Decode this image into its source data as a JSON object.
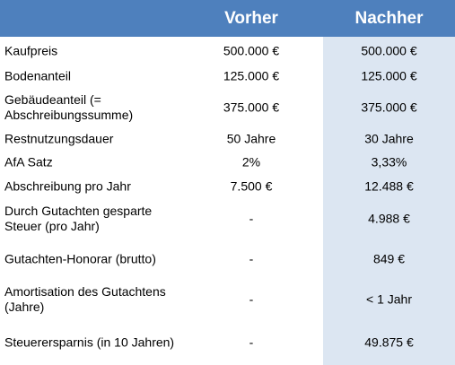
{
  "header": {
    "col_vorher": "Vorher",
    "col_nachher": "Nachher"
  },
  "rows": [
    {
      "label": "Kaufpreis",
      "vorher": "500.000 €",
      "nachher": "500.000 €"
    },
    {
      "label": "Bodenanteil",
      "vorher": "125.000 €",
      "nachher": "125.000 €"
    },
    {
      "label": "Gebäudeanteil (= Abschreibungssumme)",
      "vorher": "375.000 €",
      "nachher": "375.000 €"
    },
    {
      "label": "Restnutzungsdauer",
      "vorher": "50 Jahre",
      "nachher": "30 Jahre"
    },
    {
      "label": "AfA Satz",
      "vorher": "2%",
      "nachher": "3,33%"
    },
    {
      "label": "Abschreibung pro Jahr",
      "vorher": "7.500 €",
      "nachher": "12.488 €"
    },
    {
      "label": "Durch Gutachten gesparte Steuer (pro Jahr)",
      "vorher": "-",
      "nachher": "4.988 €"
    },
    {
      "label": "Gutachten-Honorar (brutto)",
      "vorher": "-",
      "nachher": "849 €"
    },
    {
      "label": "Amortisation des Gutachtens (Jahre)",
      "vorher": "-",
      "nachher": "< 1 Jahr"
    },
    {
      "label": "Steuerersparnis (in 10 Jahren)",
      "vorher": "-",
      "nachher": "49.875 €"
    }
  ],
  "colors": {
    "header_bg": "#4e80bd",
    "header_text": "#ffffff",
    "nachher_bg": "#dce6f2"
  }
}
